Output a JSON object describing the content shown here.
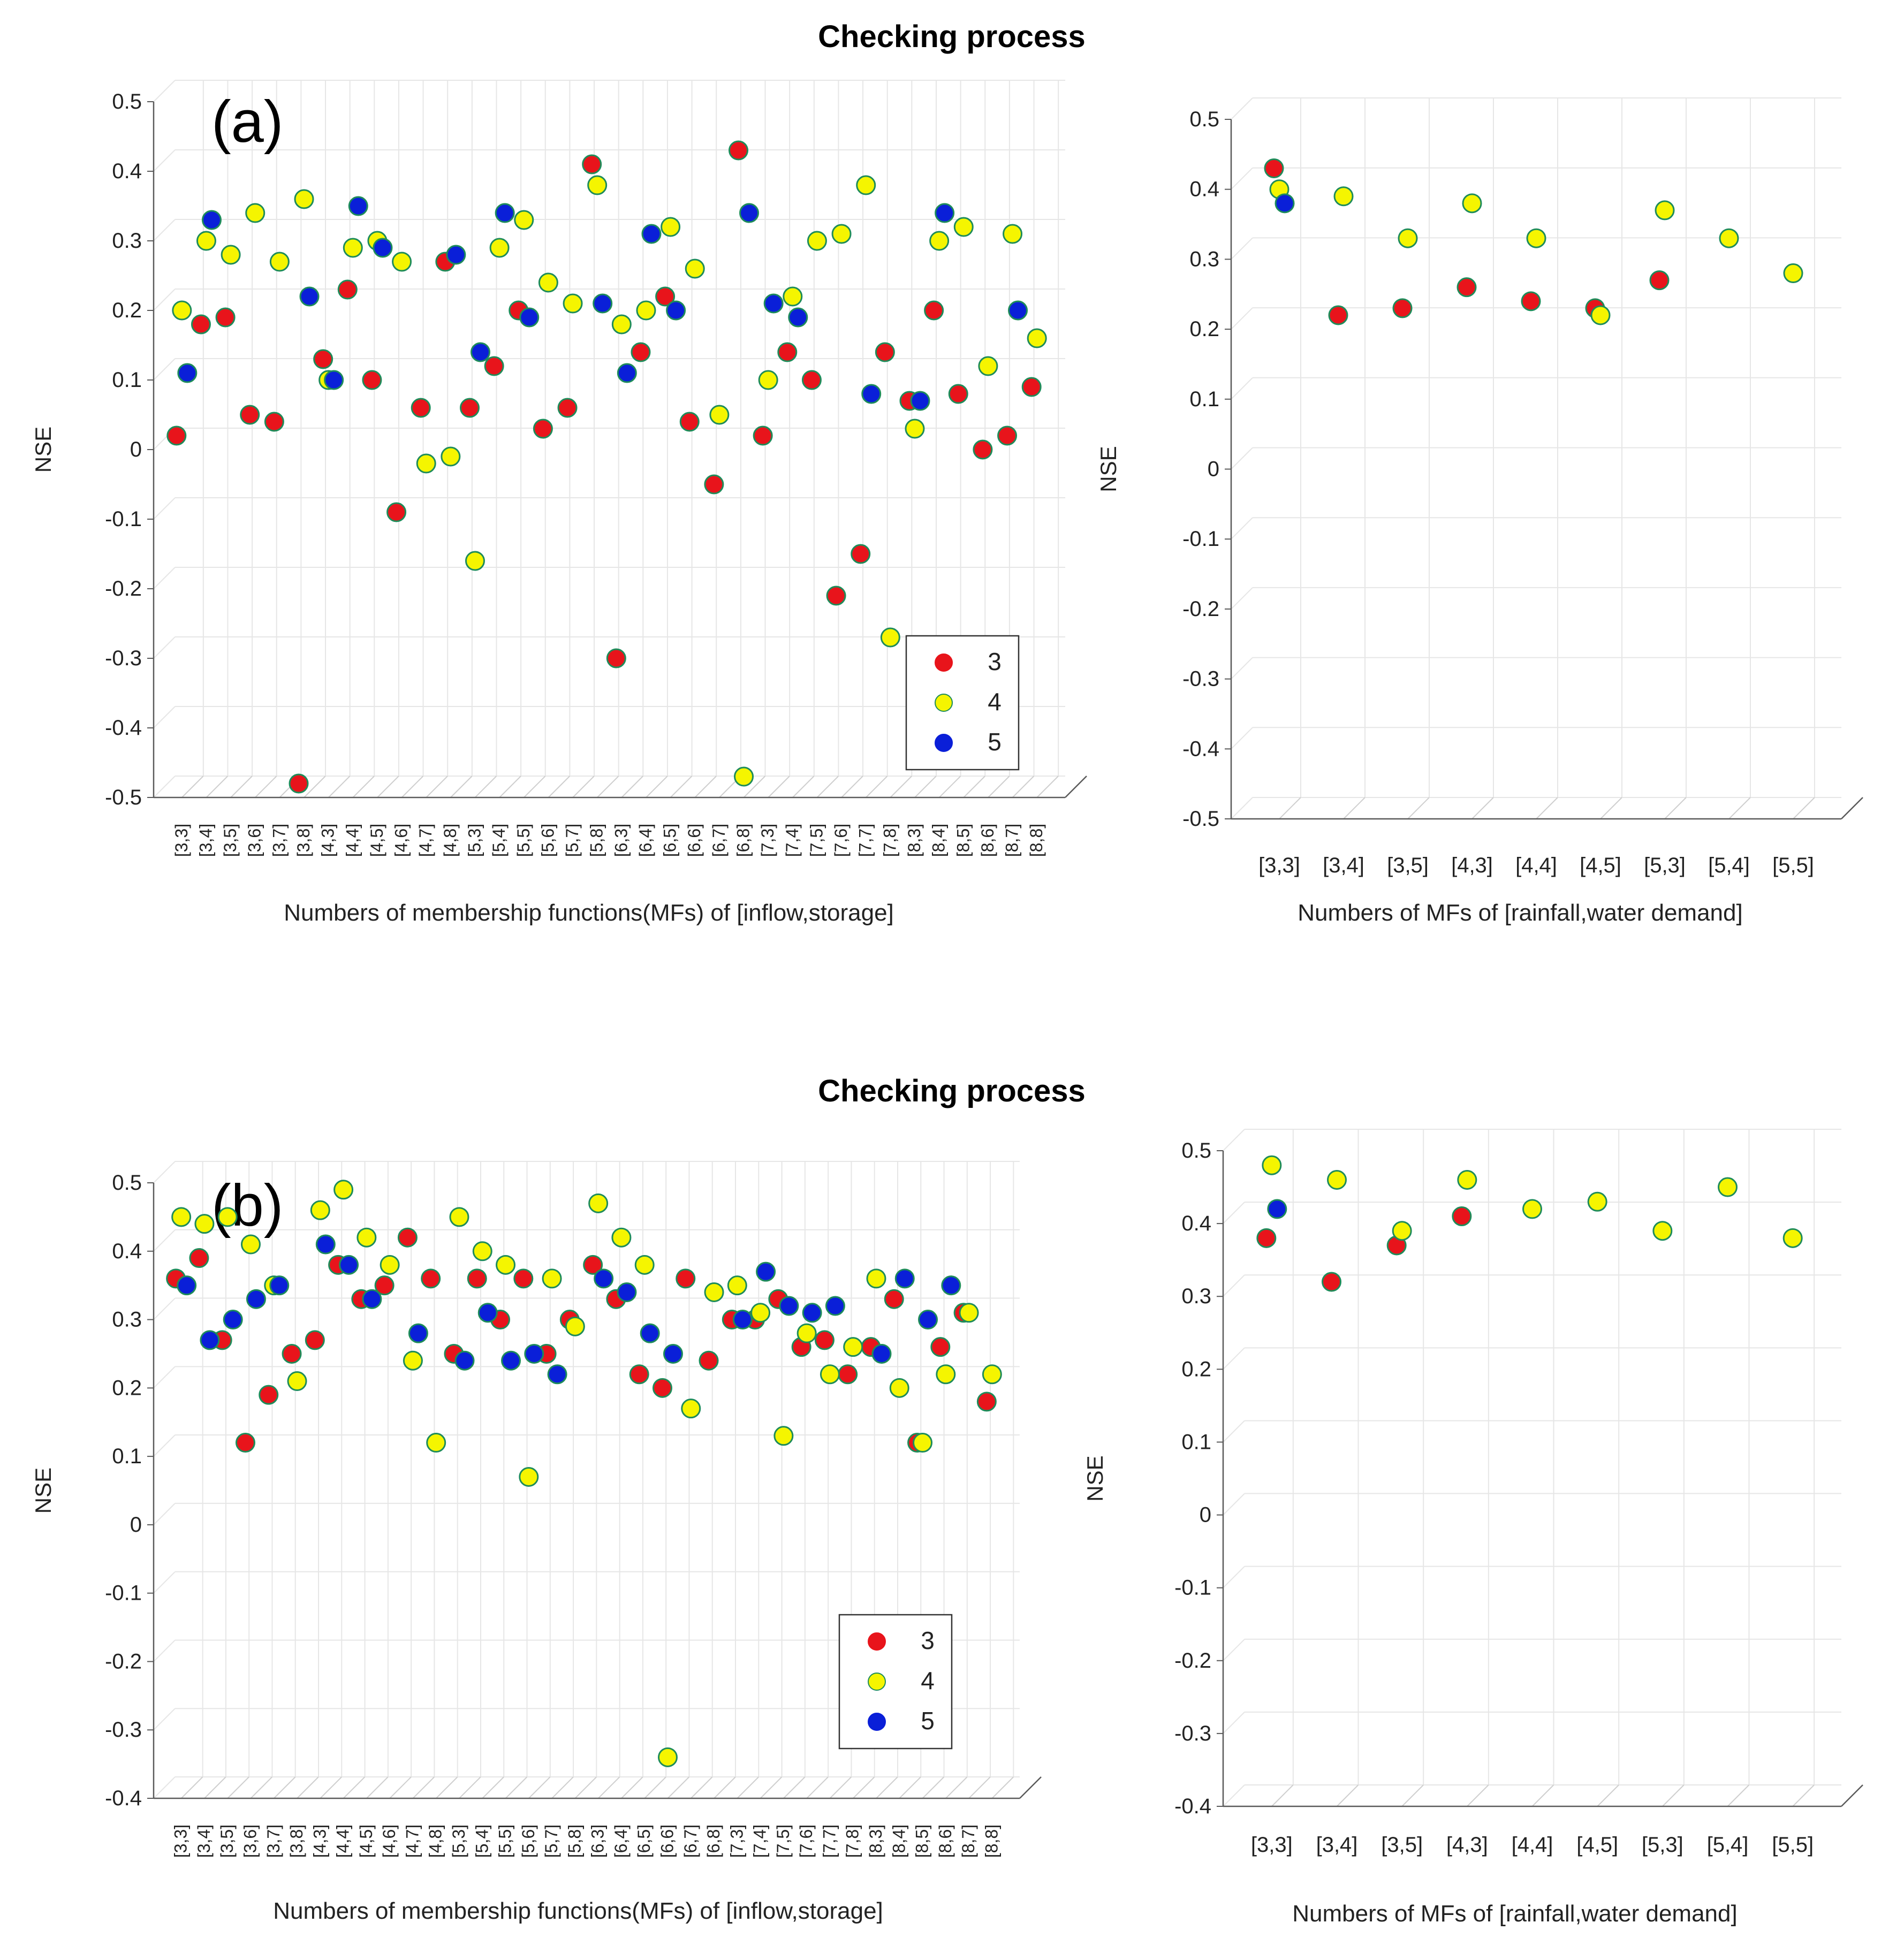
{
  "figure": {
    "titles": [
      "Checking process",
      "Checking process"
    ],
    "legend_title_values": [
      "3",
      "4",
      "5"
    ]
  },
  "chart_data": [
    {
      "type": "scatter",
      "panel_label": "(a)",
      "title": "Checking process",
      "xlabel": "Numbers of membership functions(MFs) of [inflow,storage]",
      "ylabel": "NSE",
      "ylim": [
        -0.5,
        0.5
      ],
      "yticks": [
        "0.5",
        "0.4",
        "0.3",
        "0.2",
        "0.1",
        "0",
        "-0.1",
        "-0.2",
        "-0.3",
        "-0.4",
        "-0.5"
      ],
      "categories": [
        "[3,3]",
        "[3,4]",
        "[3,5]",
        "[3,6]",
        "[3,7]",
        "[3,8]",
        "[4,3]",
        "[4,4]",
        "[4,5]",
        "[4,6]",
        "[4,7]",
        "[4,8]",
        "[5,3]",
        "[5,4]",
        "[5,5]",
        "[5,6]",
        "[5,7]",
        "[5,8]",
        "[6,3]",
        "[6,4]",
        "[6,5]",
        "[6,6]",
        "[6,7]",
        "[6,8]",
        "[7,3]",
        "[7,4]",
        "[7,5]",
        "[7,6]",
        "[7,7]",
        "[7,8]",
        "[8,3]",
        "[8,4]",
        "[8,5]",
        "[8,6]",
        "[8,7]",
        "[8,8]"
      ],
      "grid": true,
      "legend_position": "bottom-right",
      "series": [
        {
          "name": "3",
          "color": "#e8141b",
          "values": [
            0.02,
            0.18,
            0.19,
            0.05,
            0.04,
            -0.48,
            0.13,
            0.23,
            0.1,
            -0.09,
            0.06,
            0.27,
            0.06,
            0.12,
            0.2,
            0.03,
            0.06,
            0.41,
            -0.3,
            0.14,
            0.22,
            0.04,
            -0.05,
            0.43,
            0.02,
            0.14,
            0.1,
            -0.21,
            -0.15,
            0.14,
            0.07,
            0.2,
            0.08,
            0.0,
            0.02,
            0.09
          ]
        },
        {
          "name": "4",
          "color": "#f5f500",
          "values": [
            0.2,
            0.3,
            0.28,
            0.34,
            0.27,
            0.36,
            0.1,
            0.29,
            0.3,
            0.27,
            -0.02,
            -0.01,
            -0.16,
            0.29,
            0.33,
            0.24,
            0.21,
            0.38,
            0.18,
            0.2,
            0.32,
            0.26,
            0.05,
            -0.47,
            0.1,
            0.22,
            0.3,
            0.31,
            0.38,
            -0.27,
            0.03,
            0.3,
            0.32,
            0.12,
            0.31,
            0.16
          ]
        },
        {
          "name": "5",
          "color": "#0a1fd8",
          "values": [
            0.11,
            0.33,
            null,
            null,
            null,
            0.22,
            0.1,
            0.35,
            0.29,
            null,
            null,
            0.28,
            0.14,
            0.34,
            0.19,
            null,
            null,
            0.21,
            0.11,
            0.31,
            0.2,
            null,
            null,
            0.34,
            0.21,
            0.19,
            null,
            null,
            0.08,
            null,
            0.07,
            0.34,
            null,
            null,
            0.2,
            null
          ]
        }
      ]
    },
    {
      "type": "scatter",
      "panel_label": "",
      "title": "",
      "xlabel": "Numbers of MFs of [rainfall,water demand]",
      "ylabel": "NSE",
      "ylim": [
        -0.5,
        0.5
      ],
      "yticks": [
        "0.5",
        "0.4",
        "0.3",
        "0.2",
        "0.1",
        "0",
        "-0.1",
        "-0.2",
        "-0.3",
        "-0.4",
        "-0.5"
      ],
      "categories": [
        "[3,3]",
        "[3,4]",
        "[3,5]",
        "[4,3]",
        "[4,4]",
        "[4,5]",
        "[5,3]",
        "[5,4]",
        "[5,5]"
      ],
      "grid": true,
      "series": [
        {
          "name": "3",
          "color": "#e8141b",
          "values": [
            0.43,
            0.22,
            0.23,
            0.26,
            0.24,
            0.23,
            0.27,
            null,
            null
          ]
        },
        {
          "name": "4",
          "color": "#f5f500",
          "values": [
            0.4,
            0.39,
            0.33,
            0.38,
            0.33,
            0.22,
            0.37,
            0.33,
            0.28
          ]
        },
        {
          "name": "5",
          "color": "#0a1fd8",
          "values": [
            0.38,
            null,
            null,
            null,
            null,
            null,
            null,
            null,
            null
          ]
        }
      ]
    },
    {
      "type": "scatter",
      "panel_label": "(b)",
      "title": "Checking process",
      "xlabel": "Numbers of membership functions(MFs) of [inflow,storage]",
      "ylabel": "NSE",
      "ylim": [
        -0.4,
        0.5
      ],
      "yticks": [
        "0.5",
        "0.4",
        "0.3",
        "0.2",
        "0.1",
        "0",
        "-0.1",
        "-0.2",
        "-0.3",
        "-0.4"
      ],
      "categories": [
        "[3,3]",
        "[3,4]",
        "[3,5]",
        "[3,6]",
        "[3,7]",
        "[3,8]",
        "[4,3]",
        "[4,4]",
        "[4,5]",
        "[4,6]",
        "[4,7]",
        "[4,8]",
        "[5,3]",
        "[5,4]",
        "[5,5]",
        "[5,6]",
        "[5,7]",
        "[5,8]",
        "[6,3]",
        "[6,4]",
        "[6,5]",
        "[6,6]",
        "[6,7]",
        "[6,8]",
        "[7,3]",
        "[7,4]",
        "[7,5]",
        "[7,6]",
        "[7,7]",
        "[7,8]",
        "[8,3]",
        "[8,4]",
        "[8,5]",
        "[8,6]",
        "[8,7]",
        "[8,8]"
      ],
      "grid": true,
      "legend_position": "bottom-right",
      "series": [
        {
          "name": "3",
          "color": "#e8141b",
          "values": [
            0.36,
            0.39,
            0.27,
            0.12,
            0.19,
            0.25,
            0.27,
            0.38,
            0.33,
            0.35,
            0.42,
            0.36,
            0.25,
            0.36,
            0.3,
            0.36,
            0.25,
            0.3,
            0.38,
            0.33,
            0.22,
            0.2,
            0.36,
            0.24,
            0.3,
            0.3,
            0.33,
            0.26,
            0.27,
            0.22,
            0.26,
            0.33,
            0.12,
            0.26,
            0.31,
            0.18
          ]
        },
        {
          "name": "4",
          "color": "#f5f500",
          "values": [
            0.45,
            0.44,
            0.45,
            0.41,
            0.35,
            0.21,
            0.46,
            0.49,
            0.42,
            0.38,
            0.24,
            0.12,
            0.45,
            0.4,
            0.38,
            0.07,
            0.36,
            0.29,
            0.47,
            0.42,
            0.38,
            -0.34,
            0.17,
            0.34,
            0.35,
            0.31,
            0.13,
            0.28,
            0.22,
            0.26,
            0.36,
            0.2,
            0.12,
            0.22,
            0.31,
            0.22
          ]
        },
        {
          "name": "5",
          "color": "#0a1fd8",
          "values": [
            0.35,
            0.27,
            0.3,
            0.33,
            0.35,
            null,
            0.41,
            0.38,
            0.33,
            null,
            0.28,
            null,
            0.24,
            0.31,
            0.24,
            0.25,
            0.22,
            null,
            0.36,
            0.34,
            0.28,
            0.25,
            null,
            null,
            0.3,
            0.37,
            0.32,
            0.31,
            0.32,
            null,
            0.25,
            0.36,
            0.3,
            0.35,
            null,
            null
          ]
        }
      ]
    },
    {
      "type": "scatter",
      "panel_label": "",
      "title": "",
      "xlabel": "Numbers of MFs of [rainfall,water demand]",
      "ylabel": "NSE",
      "ylim": [
        -0.4,
        0.5
      ],
      "yticks": [
        "0.5",
        "0.4",
        "0.3",
        "0.2",
        "0.1",
        "0",
        "-0.1",
        "-0.2",
        "-0.3",
        "-0.4"
      ],
      "categories": [
        "[3,3]",
        "[3,4]",
        "[3,5]",
        "[4,3]",
        "[4,4]",
        "[4,5]",
        "[5,3]",
        "[5,4]",
        "[5,5]"
      ],
      "grid": true,
      "series": [
        {
          "name": "3",
          "color": "#e8141b",
          "values": [
            0.38,
            0.32,
            0.37,
            0.41,
            null,
            null,
            null,
            null,
            null
          ]
        },
        {
          "name": "4",
          "color": "#f5f500",
          "values": [
            0.48,
            0.46,
            0.39,
            0.46,
            0.42,
            0.43,
            0.39,
            0.45,
            0.38
          ]
        },
        {
          "name": "5",
          "color": "#0a1fd8",
          "values": [
            0.42,
            null,
            null,
            null,
            null,
            null,
            null,
            null,
            null
          ]
        }
      ]
    }
  ]
}
